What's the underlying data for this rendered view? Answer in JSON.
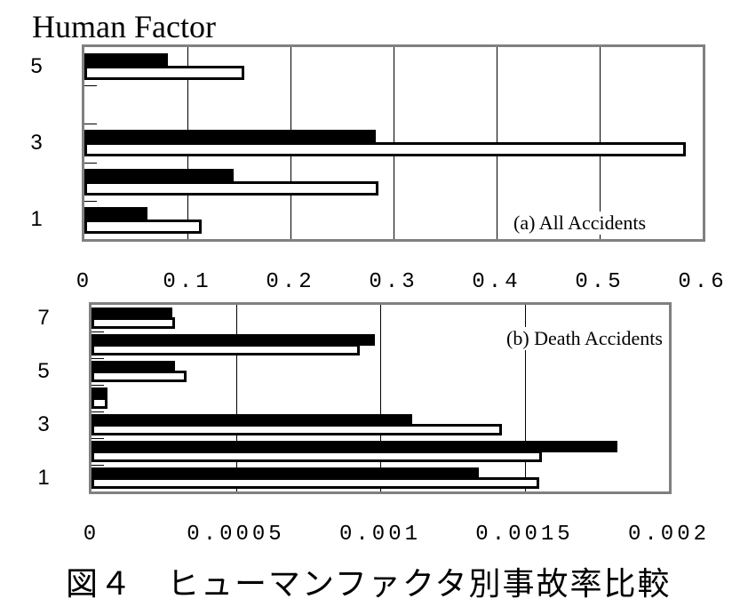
{
  "header": {
    "title": "Human Factor"
  },
  "caption": "図４　ヒューマンファクタ別事故率比較",
  "chart_data": [
    {
      "type": "bar",
      "orientation": "horizontal",
      "title": "(a) All Accidents",
      "ylabel": "Human Factor",
      "categories": [
        "1",
        "2",
        "3",
        "4",
        "5"
      ],
      "ytick_labels_shown": [
        "1",
        "3",
        "5"
      ],
      "xlim": [
        0,
        0.6
      ],
      "xticks": [
        "0",
        "0.1",
        "0.2",
        "0.3",
        "0.4",
        "0.5",
        "0.6"
      ],
      "grid": true,
      "series": [
        {
          "name": "black",
          "color": "#000000",
          "values": [
            0.061,
            0.145,
            0.283,
            0,
            0.081
          ]
        },
        {
          "name": "white",
          "color": "#ffffff",
          "values": [
            0.114,
            0.285,
            0.584,
            0,
            0.155
          ]
        }
      ]
    },
    {
      "type": "bar",
      "orientation": "horizontal",
      "title": "(b) Death Accidents",
      "ylabel": "Human Factor",
      "categories": [
        "1",
        "2",
        "3",
        "4",
        "5",
        "6",
        "7"
      ],
      "ytick_labels_shown": [
        "1",
        "3",
        "5",
        "7"
      ],
      "xlim": [
        0,
        0.002
      ],
      "xticks": [
        "0",
        "0.0005",
        "0.001",
        "0.0015",
        "0.002"
      ],
      "grid": true,
      "series": [
        {
          "name": "black",
          "color": "#000000",
          "values": [
            0.00134,
            0.00182,
            0.00111,
            5.5e-05,
            0.00029,
            0.00098,
            0.00028
          ]
        },
        {
          "name": "white",
          "color": "#ffffff",
          "values": [
            0.00155,
            0.00156,
            0.00142,
            5.5e-05,
            0.00033,
            0.00093,
            0.00029
          ]
        }
      ]
    }
  ]
}
